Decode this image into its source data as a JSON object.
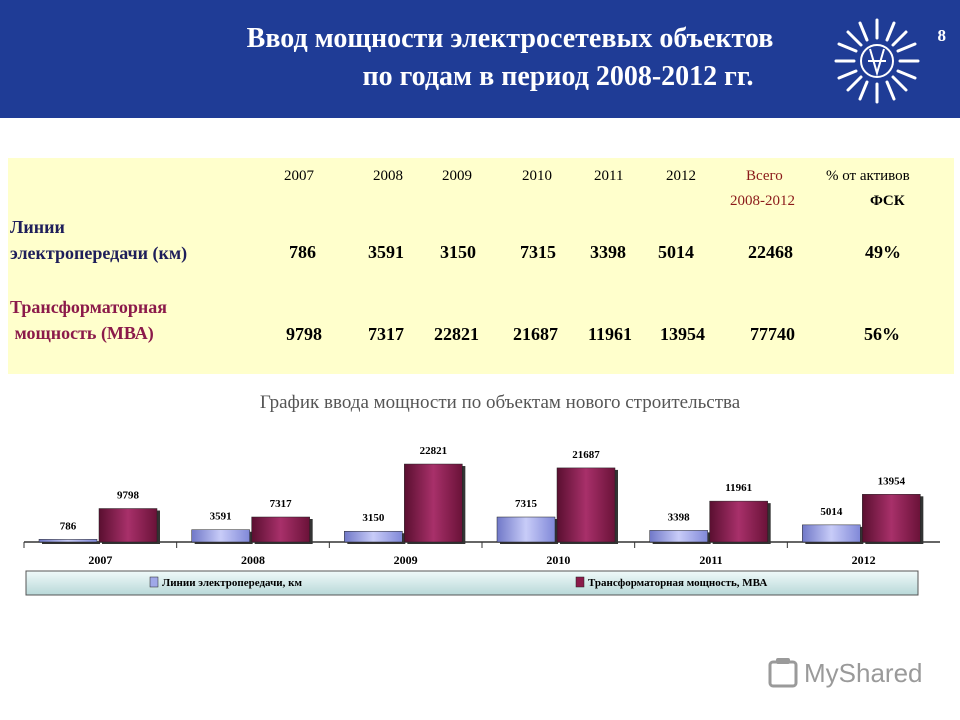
{
  "header": {
    "title_line1": "Ввод мощности электросетевых объектов",
    "title_line2": "по годам в период 2008-2012 гг.",
    "slide_number": "8"
  },
  "table": {
    "years": [
      "2007",
      "2008",
      "2009",
      "2010",
      "2011",
      "2012"
    ],
    "total_header_line1": "Всего",
    "total_header_line2": "2008-2012",
    "pct_header_line1": "% от активов",
    "pct_header_line2": "ФСК",
    "rows": [
      {
        "label_line1": "Линии",
        "label_line2": "электропередачи (км)",
        "values": [
          "786",
          "3591",
          "3150",
          "7315",
          "3398",
          "5014"
        ],
        "total": "22468",
        "pct": "49%"
      },
      {
        "label_line1": "Трансформаторная",
        "label_line2": " мощность (МВА)",
        "values": [
          "9798",
          "7317",
          "22821",
          "21687",
          "11961",
          "13954"
        ],
        "total": "77740",
        "pct": "56%"
      }
    ]
  },
  "chart_title": "График ввода мощности по объектам нового строительства",
  "chart_data": {
    "type": "bar",
    "categories": [
      "2007",
      "2008",
      "2009",
      "2010",
      "2011",
      "2012"
    ],
    "series": [
      {
        "name": "Линии электропередачи, км",
        "values": [
          786,
          3591,
          3150,
          7315,
          3398,
          5014
        ],
        "color": "#a0a8e8"
      },
      {
        "name": "Трансформаторная мощность, МВА",
        "values": [
          9798,
          7317,
          22821,
          21687,
          11961,
          13954
        ],
        "color": "#8b1a4a"
      }
    ],
    "title": "",
    "xlabel": "",
    "ylabel": "",
    "ylim": [
      0,
      24000
    ],
    "grid": false,
    "legend": "bottom"
  },
  "watermark": {
    "text": "MyShared"
  }
}
